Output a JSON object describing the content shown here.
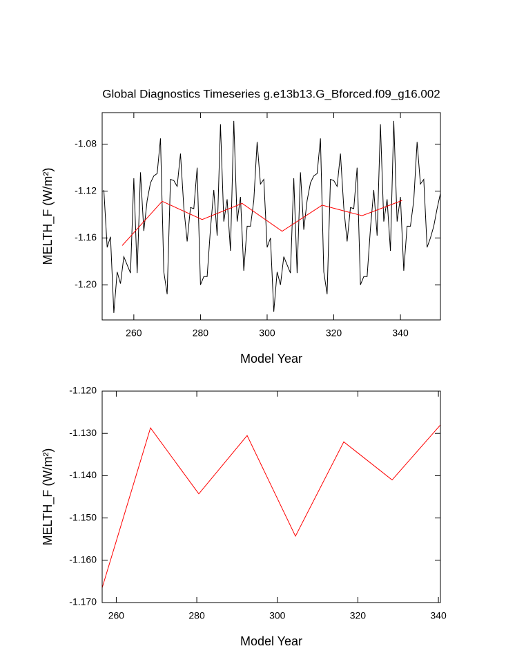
{
  "chart_data": [
    {
      "type": "line",
      "title": "Global Diagnostics Timeseries g.e13b13.G_Bforced.f09_g16.002",
      "xlabel": "Model Year",
      "ylabel": "MELTH_F (W/m²)",
      "xlim": [
        250.5,
        352
      ],
      "xticks": [
        260,
        280,
        300,
        320,
        340
      ],
      "ylim": [
        -1.23,
        -1.053
      ],
      "yticks": [
        {
          "value": -1.08,
          "label": "-1.08"
        },
        {
          "value": -1.12,
          "label": "-1.12"
        },
        {
          "value": -1.16,
          "label": "-1.16"
        },
        {
          "value": -1.2,
          "label": "-1.20"
        }
      ],
      "grid": false,
      "series": [
        {
          "color": "#000000",
          "x": [
            251,
            252,
            253,
            254,
            255,
            256,
            257,
            258,
            259,
            260,
            261,
            262,
            263,
            264,
            265,
            266,
            267,
            268,
            269,
            270,
            271,
            272,
            273,
            274,
            275,
            276,
            277,
            278,
            279,
            280,
            281,
            282,
            283,
            284,
            285,
            286,
            287,
            288,
            289,
            290,
            291,
            292,
            293,
            294,
            295,
            296,
            297,
            298,
            299,
            300,
            301,
            302,
            303,
            304,
            305,
            306,
            307,
            308,
            309,
            310,
            311,
            312,
            313,
            314,
            315,
            316,
            317,
            318,
            319,
            320,
            321,
            322,
            323,
            324,
            325,
            326,
            327,
            328,
            329,
            330,
            331,
            332,
            333,
            334,
            335,
            336,
            337,
            338,
            339,
            340,
            341,
            342,
            343,
            344,
            345,
            346,
            347,
            348,
            349,
            350,
            351,
            352
          ],
          "values": [
            -1.119,
            -1.168,
            -1.159,
            -1.224,
            -1.189,
            -1.199,
            -1.176,
            -1.183,
            -1.19,
            -1.109,
            -1.19,
            -1.104,
            -1.154,
            -1.128,
            -1.113,
            -1.107,
            -1.105,
            -1.075,
            -1.189,
            -1.208,
            -1.11,
            -1.111,
            -1.116,
            -1.088,
            -1.134,
            -1.163,
            -1.134,
            -1.135,
            -1.1,
            -1.2,
            -1.193,
            -1.193,
            -1.152,
            -1.119,
            -1.158,
            -1.063,
            -1.146,
            -1.127,
            -1.171,
            -1.06,
            -1.146,
            -1.125,
            -1.188,
            -1.15,
            -1.15,
            -1.128,
            -1.078,
            -1.114,
            -1.11,
            -1.168,
            -1.16,
            -1.223,
            -1.189,
            -1.2,
            -1.176,
            -1.183,
            -1.19,
            -1.109,
            -1.19,
            -1.104,
            -1.153,
            -1.128,
            -1.113,
            -1.107,
            -1.105,
            -1.075,
            -1.189,
            -1.208,
            -1.11,
            -1.111,
            -1.116,
            -1.088,
            -1.134,
            -1.163,
            -1.134,
            -1.135,
            -1.1,
            -1.2,
            -1.193,
            -1.193,
            -1.152,
            -1.119,
            -1.158,
            -1.063,
            -1.146,
            -1.127,
            -1.171,
            -1.06,
            -1.146,
            -1.125,
            -1.188,
            -1.15,
            -1.15,
            -1.128,
            -1.078,
            -1.114,
            -1.11,
            -1.168,
            -1.16,
            -1.15,
            -1.135,
            -1.122
          ]
        },
        {
          "color": "#ff0000",
          "x": [
            256.5,
            268.5,
            280.5,
            292.5,
            304.5,
            316.5,
            328.5,
            340.5
          ],
          "values": [
            -1.1665,
            -1.1287,
            -1.1443,
            -1.1305,
            -1.1543,
            -1.132,
            -1.141,
            -1.128
          ]
        }
      ]
    },
    {
      "type": "line",
      "xlabel": "Model Year",
      "ylabel": "MELTH_F (W/m²)",
      "xlim": [
        256.5,
        340.5
      ],
      "xticks": [
        260,
        280,
        300,
        320,
        340
      ],
      "ylim": [
        -1.17,
        -1.12
      ],
      "yticks": [
        {
          "value": -1.12,
          "label": "-1.120"
        },
        {
          "value": -1.13,
          "label": "-1.130"
        },
        {
          "value": -1.14,
          "label": "-1.140"
        },
        {
          "value": -1.15,
          "label": "-1.150"
        },
        {
          "value": -1.16,
          "label": "-1.160"
        },
        {
          "value": -1.17,
          "label": "-1.170"
        }
      ],
      "grid": false,
      "series": [
        {
          "color": "#ff0000",
          "x": [
            256.5,
            268.5,
            280.5,
            292.5,
            304.5,
            316.5,
            328.5,
            340.5
          ],
          "values": [
            -1.1665,
            -1.1287,
            -1.1443,
            -1.1305,
            -1.1543,
            -1.132,
            -1.141,
            -1.128
          ]
        }
      ]
    }
  ]
}
